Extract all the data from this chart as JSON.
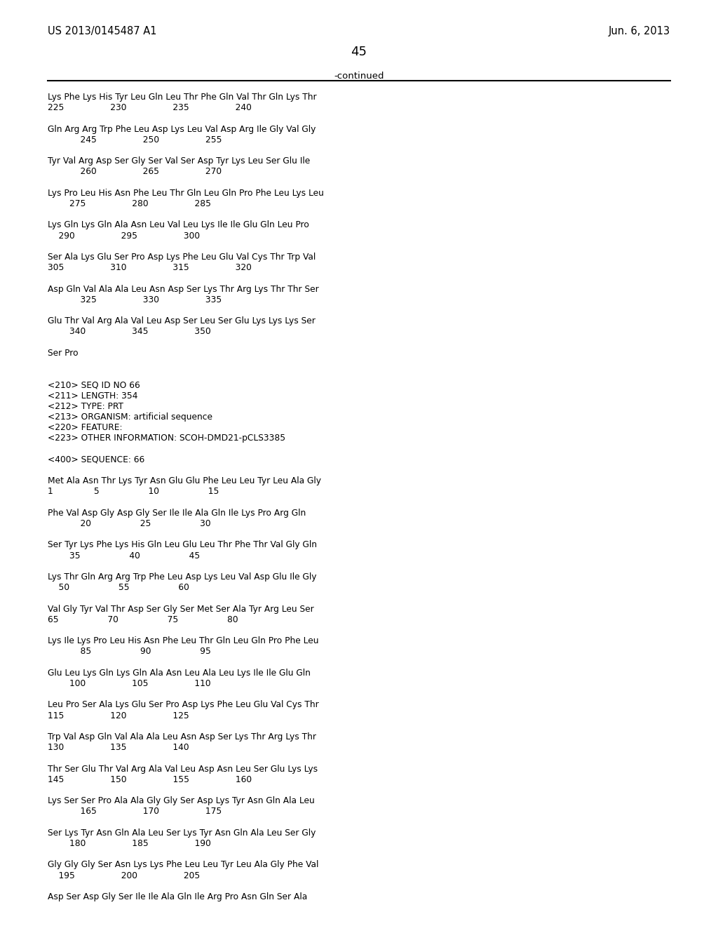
{
  "left_header": "US 2013/0145487 A1",
  "right_header": "Jun. 6, 2013",
  "page_number": "45",
  "continued_label": "-continued",
  "background_color": "#ffffff",
  "text_color": "#000000",
  "content_lines": [
    "Lys Phe Lys His Tyr Leu Gln Leu Thr Phe Gln Val Thr Gln Lys Thr",
    "225                 230                 235                 240",
    "",
    "Gln Arg Arg Trp Phe Leu Asp Lys Leu Val Asp Arg Ile Gly Val Gly",
    "            245                 250                 255",
    "",
    "Tyr Val Arg Asp Ser Gly Ser Val Ser Asp Tyr Lys Leu Ser Glu Ile",
    "            260                 265                 270",
    "",
    "Lys Pro Leu His Asn Phe Leu Thr Gln Leu Gln Pro Phe Leu Lys Leu",
    "        275                 280                 285",
    "",
    "Lys Gln Lys Gln Ala Asn Leu Val Leu Lys Ile Ile Glu Gln Leu Pro",
    "    290                 295                 300",
    "",
    "Ser Ala Lys Glu Ser Pro Asp Lys Phe Leu Glu Val Cys Thr Trp Val",
    "305                 310                 315                 320",
    "",
    "Asp Gln Val Ala Ala Leu Asn Asp Ser Lys Thr Arg Lys Thr Thr Ser",
    "            325                 330                 335",
    "",
    "Glu Thr Val Arg Ala Val Leu Asp Ser Leu Ser Glu Lys Lys Lys Ser",
    "        340                 345                 350",
    "",
    "Ser Pro",
    "",
    "",
    "<210> SEQ ID NO 66",
    "<211> LENGTH: 354",
    "<212> TYPE: PRT",
    "<213> ORGANISM: artificial sequence",
    "<220> FEATURE:",
    "<223> OTHER INFORMATION: SCOH-DMD21-pCLS3385",
    "",
    "<400> SEQUENCE: 66",
    "",
    "Met Ala Asn Thr Lys Tyr Asn Glu Glu Phe Leu Leu Tyr Leu Ala Gly",
    "1               5                  10                  15",
    "",
    "Phe Val Asp Gly Asp Gly Ser Ile Ile Ala Gln Ile Lys Pro Arg Gln",
    "            20                  25                  30",
    "",
    "Ser Tyr Lys Phe Lys His Gln Leu Glu Leu Thr Phe Thr Val Gly Gln",
    "        35                  40                  45",
    "",
    "Lys Thr Gln Arg Arg Trp Phe Leu Asp Lys Leu Val Asp Glu Ile Gly",
    "    50                  55                  60",
    "",
    "Val Gly Tyr Val Thr Asp Ser Gly Ser Met Ser Ala Tyr Arg Leu Ser",
    "65                  70                  75                  80",
    "",
    "Lys Ile Lys Pro Leu His Asn Phe Leu Thr Gln Leu Gln Pro Phe Leu",
    "            85                  90                  95",
    "",
    "Glu Leu Lys Gln Lys Gln Ala Asn Leu Ala Leu Lys Ile Ile Glu Gln",
    "        100                 105                 110",
    "",
    "Leu Pro Ser Ala Lys Glu Ser Pro Asp Lys Phe Leu Glu Val Cys Thr",
    "115                 120                 125",
    "",
    "Trp Val Asp Gln Val Ala Ala Leu Asn Asp Ser Lys Thr Arg Lys Thr",
    "130                 135                 140",
    "",
    "Thr Ser Glu Thr Val Arg Ala Val Leu Asp Asn Leu Ser Glu Lys Lys",
    "145                 150                 155                 160",
    "",
    "Lys Ser Ser Pro Ala Ala Gly Gly Ser Asp Lys Tyr Asn Gln Ala Leu",
    "            165                 170                 175",
    "",
    "Ser Lys Tyr Asn Gln Ala Leu Ser Lys Tyr Asn Gln Ala Leu Ser Gly",
    "        180                 185                 190",
    "",
    "Gly Gly Gly Ser Asn Lys Lys Phe Leu Leu Tyr Leu Ala Gly Phe Val",
    "    195                 200                 205",
    "",
    "Asp Ser Asp Gly Ser Ile Ile Ala Gln Ile Arg Pro Asn Gln Ser Ala"
  ]
}
